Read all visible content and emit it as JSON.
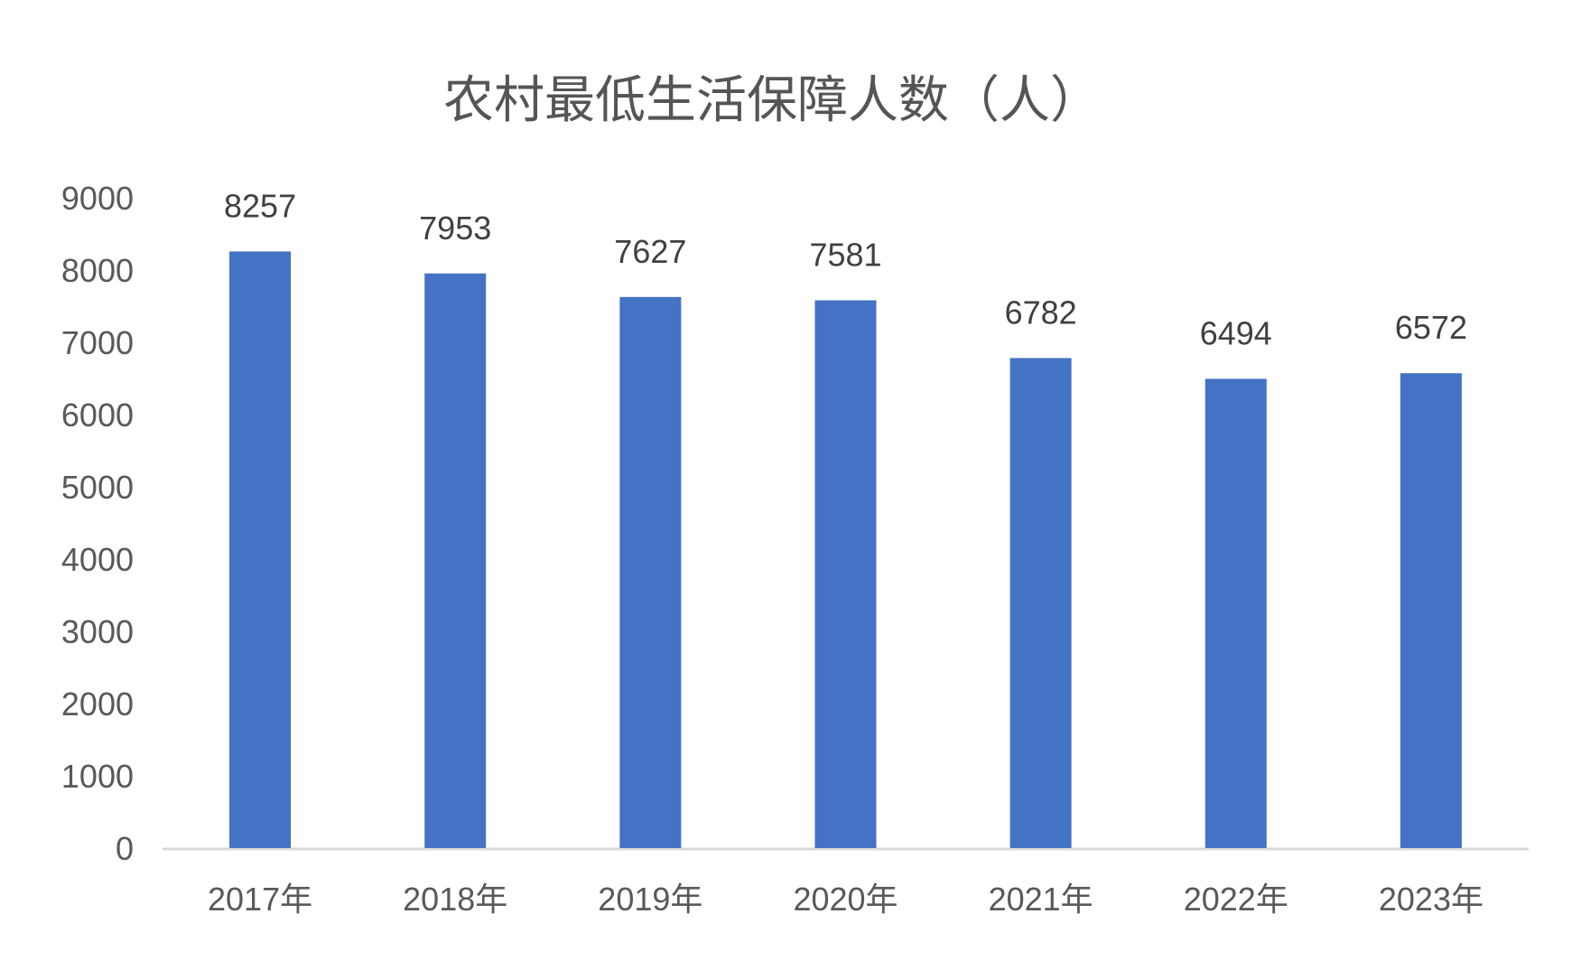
{
  "chart_data": {
    "type": "bar",
    "title": "农村最低生活保障人数（人）",
    "categories": [
      "2017年",
      "2018年",
      "2019年",
      "2020年",
      "2021年",
      "2022年",
      "2023年"
    ],
    "values": [
      8257,
      7953,
      7627,
      7581,
      6782,
      6494,
      6572
    ],
    "ylim": [
      0,
      9000
    ],
    "yticks": [
      0,
      1000,
      2000,
      3000,
      4000,
      5000,
      6000,
      7000,
      8000,
      9000
    ],
    "xlabel": "",
    "ylabel": "",
    "grid": false,
    "legend": "none",
    "data_labels": true,
    "colors": {
      "bar": "#4472C4",
      "axis": "#D9D9D9",
      "title": "#555555",
      "tick": "#595959",
      "label": "#404040"
    }
  }
}
